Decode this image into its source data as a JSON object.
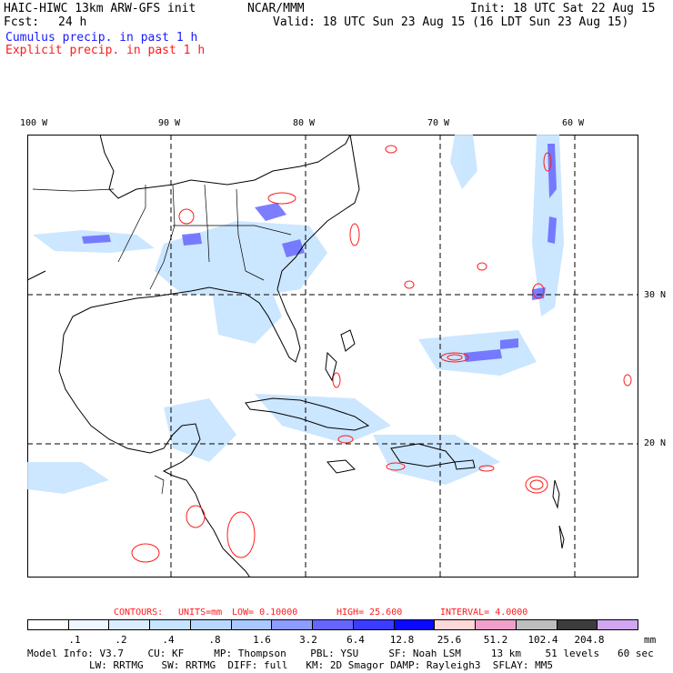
{
  "header": {
    "model": "HAIC-HIWC 13km ARW-GFS init",
    "center": "NCAR/MMM",
    "init": "Init: 18 UTC Sat 22 Aug 15",
    "fcst_label": "Fcst:",
    "fcst_value": "24 h",
    "valid": "Valid: 18 UTC Sun 23 Aug 15 (16 LDT Sun 23 Aug 15)",
    "cumulus": "Cumulus precip. in past 1 h",
    "explicit": "Explicit precip. in past 1 h"
  },
  "map": {
    "lon_labels": [
      "100 W",
      "90 W",
      "80 W",
      "70 W",
      "60 W"
    ],
    "lat_labels": [
      "30 N",
      "20 N"
    ]
  },
  "contours": {
    "label": "CONTOURS:",
    "units": "UNITS=mm",
    "low": "LOW= 0.10000",
    "high": "HIGH= 25.600",
    "interval": "INTERVAL= 4.0000"
  },
  "colorbar": {
    "colors": [
      "#ffffff",
      "#eef6ff",
      "#daeeff",
      "#c6e4ff",
      "#b8d8ff",
      "#a8c8ff",
      "#8c9cff",
      "#6666ff",
      "#3c3cff",
      "#0a0aff",
      "#ffd8d8",
      "#f0a0c8",
      "#bebebe",
      "#3c3c3c",
      "#d0a6f0"
    ],
    "ticks": [
      ".1",
      ".2",
      ".4",
      ".8",
      "1.6",
      "3.2",
      "6.4",
      "12.8",
      "25.6",
      "51.2",
      "102.4",
      "204.8"
    ],
    "unit": "mm"
  },
  "footer": {
    "line1": "Model Info: V3.7    CU: KF     MP: Thompson    PBL: YSU     SF: Noah LSM     13 km    51 levels   60 sec",
    "line2": "LW: RRTMG   SW: RRTMG  DIFF: full   KM: 2D Smagor DAMP: Rayleigh3  SFLAY: MM5"
  },
  "colors": {
    "cumulus": "#1a1aff",
    "explicit": "#ff1a1a"
  }
}
